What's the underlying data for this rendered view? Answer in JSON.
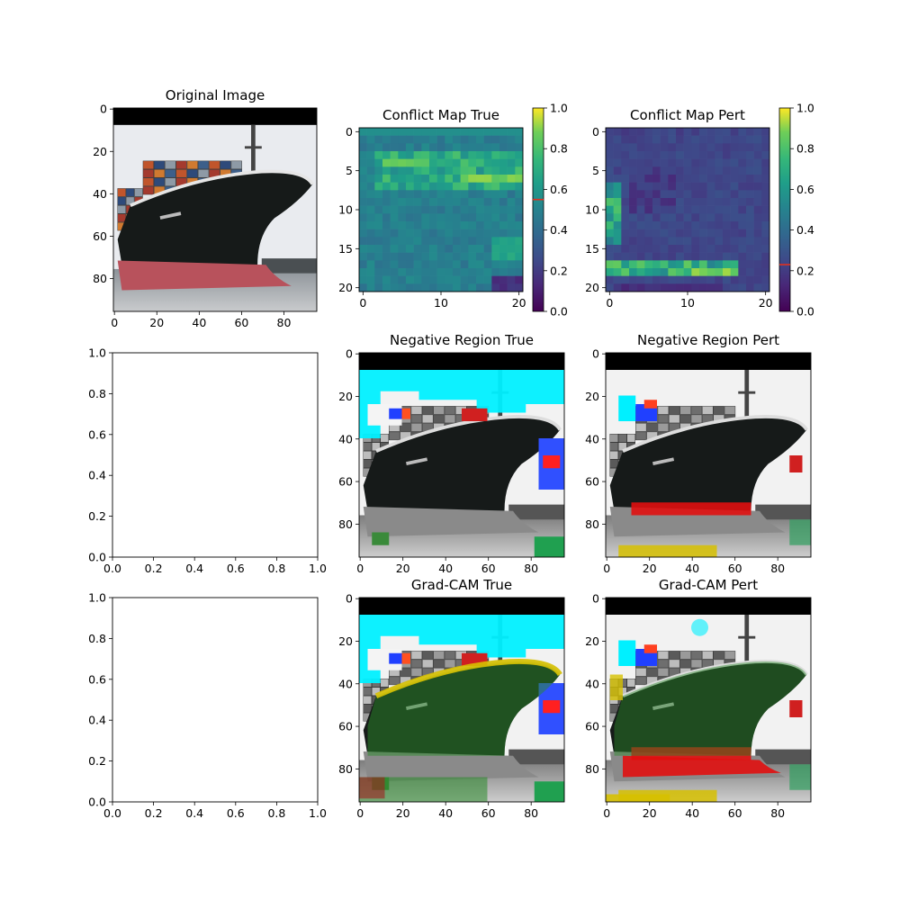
{
  "chart_data": [
    {
      "type": "image",
      "title": "Original Image",
      "x_ticks": [
        0,
        20,
        40,
        60,
        80
      ],
      "y_ticks": [
        0,
        20,
        40,
        60,
        80
      ],
      "x_range": [
        -0.5,
        95.5
      ],
      "y_range": [
        95.5,
        -0.5
      ]
    },
    {
      "type": "heatmap",
      "title": "Conflict Map True",
      "x_ticks": [
        0,
        10,
        20
      ],
      "y_ticks": [
        0,
        5,
        10,
        15,
        20
      ],
      "grid_size": 21,
      "colormap": "viridis",
      "colorbar_ticks": [
        "0.0",
        "0.2",
        "0.4",
        "0.6",
        "0.8",
        "1.0"
      ],
      "colorbar_range": [
        0,
        1
      ],
      "colorbar_marker": 0.55,
      "values_summary": "mostly 0.45-0.55 (teal), bright band 0.7-0.9 around rows 5-7, low 0.05-0.2 at bottom-right corner"
    },
    {
      "type": "heatmap",
      "title": "Conflict Map Pert",
      "x_ticks": [
        0,
        10,
        20
      ],
      "y_ticks": [
        0,
        5,
        10,
        15,
        20
      ],
      "grid_size": 21,
      "colormap": "viridis",
      "colorbar_ticks": [
        "0.0",
        "0.2",
        "0.4",
        "0.6",
        "0.8",
        "1.0"
      ],
      "colorbar_range": [
        0,
        1
      ],
      "colorbar_marker": 0.23,
      "values_summary": "mostly 0.22-0.3 (blue), highlights 0.6-0.85 around rows 17-18 and left column"
    },
    {
      "type": "empty",
      "title": "",
      "x_ticks": [
        "0.0",
        "0.2",
        "0.4",
        "0.6",
        "0.8",
        "1.0"
      ],
      "y_ticks": [
        "0.0",
        "0.2",
        "0.4",
        "0.6",
        "0.8",
        "1.0"
      ]
    },
    {
      "type": "image",
      "title": "Negative Region True",
      "x_ticks": [
        0,
        20,
        40,
        60,
        80
      ],
      "y_ticks": [
        0,
        20,
        40,
        60,
        80
      ]
    },
    {
      "type": "image",
      "title": "Negative Region Pert",
      "x_ticks": [
        0,
        20,
        40,
        60,
        80
      ],
      "y_ticks": [
        0,
        20,
        40,
        60,
        80
      ]
    },
    {
      "type": "empty",
      "title": "",
      "x_ticks": [
        "0.0",
        "0.2",
        "0.4",
        "0.6",
        "0.8",
        "1.0"
      ],
      "y_ticks": [
        "0.0",
        "0.2",
        "0.4",
        "0.6",
        "0.8",
        "1.0"
      ]
    },
    {
      "type": "image",
      "title": "Grad-CAM True",
      "x_ticks": [
        0,
        20,
        40,
        60,
        80
      ],
      "y_ticks": [
        0,
        20,
        40,
        60,
        80
      ]
    },
    {
      "type": "image",
      "title": "Grad-CAM Pert",
      "x_ticks": [
        0,
        20,
        40,
        60,
        80
      ],
      "y_ticks": [
        0,
        20,
        40,
        60,
        80
      ]
    }
  ],
  "colors": {
    "sky": "#e9ebef",
    "hull": "#161a19",
    "hull_red": "#b8525c",
    "cyan": "#00f0ff",
    "red_overlay": "#e01010",
    "green_overlay": "#2a8a2a",
    "yellow_overlay": "#d6c000"
  }
}
